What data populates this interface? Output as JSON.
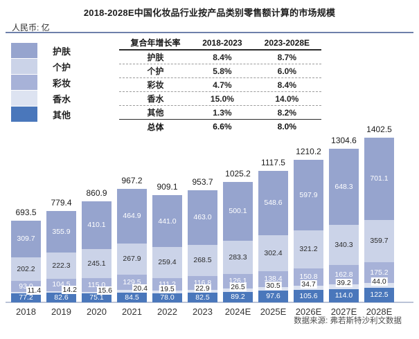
{
  "title": "2018-2028E中国化妆品行业按产品类别零售额计算的市场规模",
  "unit_label": "人民币: 亿",
  "source_label": "数据来源: 弗若斯特沙利文数据",
  "colors": {
    "skincare": "#96a4ce",
    "personal_care": "#cbd3e8",
    "color_cosmetics": "#a7b2d8",
    "perfume": "#dde3f1",
    "other": "#4a77bb",
    "axis": "#bac3d7",
    "header_rule": "#6e80aa"
  },
  "cagr_table": {
    "col_headers": [
      "复合年增长率",
      "2018-2023",
      "2023-2028E"
    ],
    "rows": [
      [
        "护肤",
        "8.4%",
        "8.7%"
      ],
      [
        "个护",
        "5.8%",
        "6.0%"
      ],
      [
        "彩妆",
        "4.7%",
        "8.4%"
      ],
      [
        "香水",
        "15.0%",
        "14.0%"
      ],
      [
        "其他",
        "1.3%",
        "8.2%"
      ],
      [
        "总体",
        "6.6%",
        "8.0%"
      ]
    ]
  },
  "chart_data": {
    "type": "bar",
    "stacked": true,
    "title": "2018-2028E中国化妆品行业按产品类别零售额计算的市场规模",
    "ylabel": "人民币: 亿",
    "grid": false,
    "legend_position": "top-left",
    "categories": [
      "2018",
      "2019",
      "2020",
      "2021",
      "2022",
      "2023",
      "2024E",
      "2025E",
      "2026E",
      "2027E",
      "2028E"
    ],
    "series": [
      {
        "name": "护肤",
        "color": "#96a4ce",
        "values": [
          309.7,
          355.9,
          410.1,
          464.9,
          441.0,
          463.0,
          500.1,
          548.6,
          597.9,
          648.3,
          701.1
        ]
      },
      {
        "name": "个护",
        "color": "#cbd3e8",
        "values": [
          202.2,
          222.3,
          245.1,
          267.9,
          259.4,
          268.5,
          283.3,
          302.4,
          321.2,
          340.3,
          359.7
        ]
      },
      {
        "name": "彩妆",
        "color": "#a7b2d8",
        "values": [
          93.0,
          104.5,
          115.0,
          129.5,
          111.2,
          116.8,
          126.1,
          138.4,
          150.8,
          162.8,
          175.2
        ]
      },
      {
        "name": "香水",
        "color": "#dde3f1",
        "values": [
          11.4,
          14.2,
          15.6,
          20.4,
          19.5,
          22.9,
          26.5,
          30.5,
          34.7,
          39.2,
          44.0
        ]
      },
      {
        "name": "其他",
        "color": "#4a77bb",
        "values": [
          77.2,
          82.6,
          75.1,
          84.5,
          78.0,
          82.5,
          89.2,
          97.6,
          105.6,
          114.0,
          122.5
        ]
      }
    ],
    "totals": [
      693.5,
      779.4,
      860.9,
      967.2,
      909.1,
      953.7,
      1025.2,
      1117.5,
      1210.2,
      1304.6,
      1402.5
    ]
  }
}
